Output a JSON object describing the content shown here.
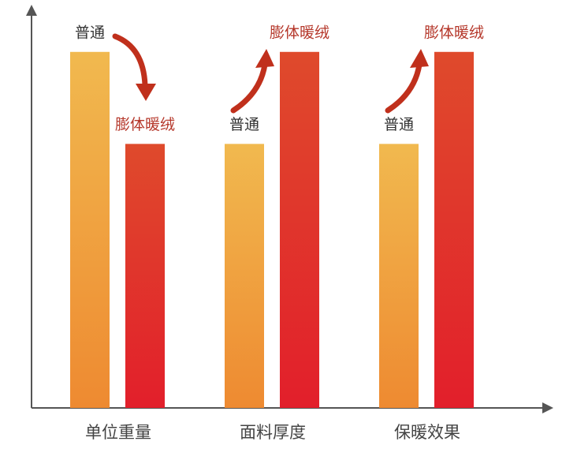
{
  "chart_data": {
    "type": "bar",
    "categories": [
      "单位重量",
      "面料厚度",
      "保暖效果"
    ],
    "series": [
      {
        "name": "普通",
        "color": "#f1b94f",
        "colors": [
          "#f1b94f",
          "#ee8a31"
        ],
        "label_color": "#333333",
        "values": [
          89,
          66,
          66
        ]
      },
      {
        "name": "膨体暖绒",
        "color": "#e0472b",
        "colors": [
          "#df4a2c",
          "#e21f2b"
        ],
        "label_color": "#b5372a",
        "values": [
          66,
          89,
          89
        ]
      }
    ],
    "ylim": [
      0,
      100
    ]
  }
}
